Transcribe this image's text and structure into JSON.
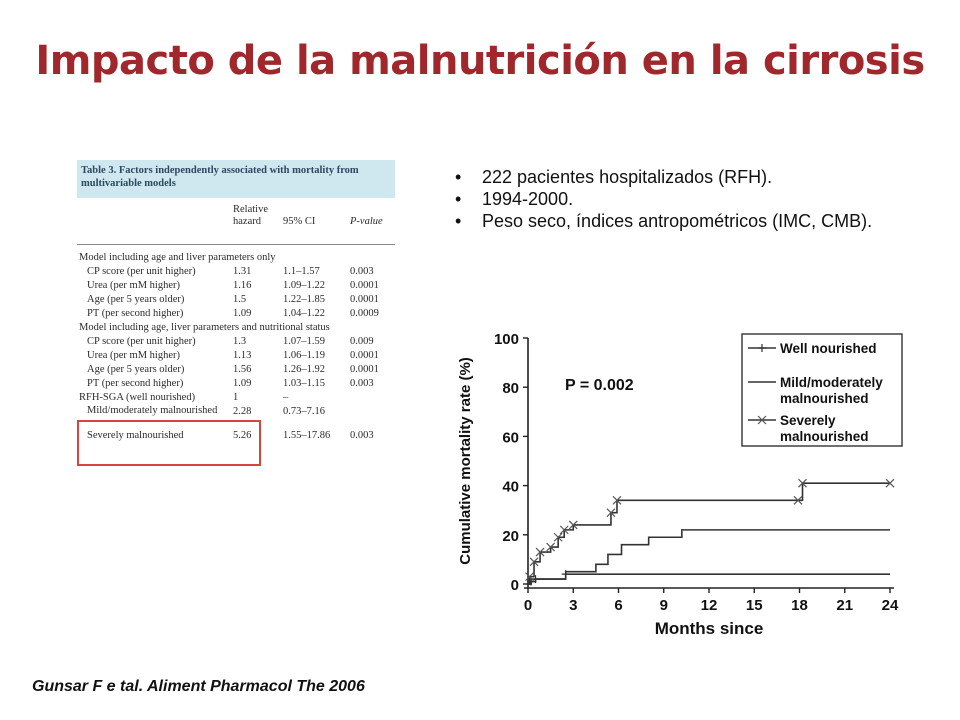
{
  "title": "Impacto de la malnutrición en la cirrosis",
  "table": {
    "caption_number": "Table 3.",
    "caption_text": "Factors independently associated with mortality from multivariable models",
    "col_hr_line1": "Relative",
    "col_hr_line2": "hazard",
    "col_ci": "95% CI",
    "col_p": "P-value",
    "rows": [
      {
        "label": "Model including age and liver parameters only",
        "hr": "",
        "ci": "",
        "p": "",
        "kind": "section"
      },
      {
        "label": "CP score (per unit higher)",
        "hr": "1.31",
        "ci": "1.1–1.57",
        "p": "0.003",
        "kind": "item"
      },
      {
        "label": "Urea (per mM higher)",
        "hr": "1.16",
        "ci": "1.09–1.22",
        "p": "0.0001",
        "kind": "item"
      },
      {
        "label": "Age (per 5 years older)",
        "hr": "1.5",
        "ci": "1.22–1.85",
        "p": "0.0001",
        "kind": "item"
      },
      {
        "label": "PT (per second higher)",
        "hr": "1.09",
        "ci": "1.04–1.22",
        "p": "0.0009",
        "kind": "item"
      },
      {
        "label": "Model including age, liver parameters and nutritional status",
        "hr": "",
        "ci": "",
        "p": "",
        "kind": "section"
      },
      {
        "label": "CP score (per unit higher)",
        "hr": "1.3",
        "ci": "1.07–1.59",
        "p": "0.009",
        "kind": "item"
      },
      {
        "label": "Urea (per mM higher)",
        "hr": "1.13",
        "ci": "1.06–1.19",
        "p": "0.0001",
        "kind": "item"
      },
      {
        "label": "Age (per 5 years older)",
        "hr": "1.56",
        "ci": "1.26–1.92",
        "p": "0.0001",
        "kind": "item"
      },
      {
        "label": "PT (per second higher)",
        "hr": "1.09",
        "ci": "1.03–1.15",
        "p": "0.003",
        "kind": "item"
      },
      {
        "label": "RFH-SGA (well nourished)",
        "hr": "1",
        "ci": "–",
        "p": "",
        "kind": "section"
      },
      {
        "label": "Mild/moderately malnourished",
        "hr": "2.28",
        "ci": "0.73–7.16",
        "p": "",
        "kind": "tall"
      },
      {
        "label": "Severely malnourished",
        "hr": "5.26",
        "ci": "1.55–17.86",
        "p": "0.003",
        "kind": "item"
      }
    ]
  },
  "bullets": [
    "222 pacientes hospitalizados (RFH).",
    "1994-2000.",
    "Peso seco, índices antropométricos (IMC, CMB)."
  ],
  "bullet_glyph": "•",
  "reference": "Gunsar F e tal. Aliment Pharmacol The 2006",
  "colors": {
    "title": "#a0282d",
    "caption_bg": "#cfe7ef",
    "highlight_box": "#d9443e"
  },
  "chart_data": {
    "type": "line",
    "title": "",
    "xlabel": "Months since",
    "ylabel": "Cumulative mortality rate (%)",
    "xlim": [
      0,
      24
    ],
    "ylim": [
      0,
      100
    ],
    "x_ticks": [
      0,
      3,
      6,
      9,
      12,
      15,
      18,
      21,
      24
    ],
    "y_ticks": [
      0,
      20,
      40,
      60,
      80,
      100
    ],
    "annotation": "P = 0.002",
    "legend_position": "top-right",
    "series": [
      {
        "name": "Well nourished",
        "marker": "plus",
        "x": [
          0,
          0.2,
          0.5,
          2.5,
          24
        ],
        "y": [
          0,
          1,
          2,
          4,
          4
        ]
      },
      {
        "name": "Mild/moderately malnourished",
        "marker": "none",
        "x": [
          0,
          0.2,
          2.5,
          4.5,
          5.3,
          6.2,
          8,
          10.2,
          24
        ],
        "y": [
          0,
          2,
          5,
          8,
          12,
          16,
          19,
          22,
          22
        ]
      },
      {
        "name": "Severely malnourished",
        "marker": "x",
        "x": [
          0,
          0.1,
          0.4,
          0.8,
          1.5,
          2,
          2.4,
          3,
          5.5,
          5.9,
          17.9,
          18.2,
          24
        ],
        "y": [
          0,
          3,
          9,
          13,
          15,
          19,
          22,
          24,
          29,
          34,
          34,
          41,
          41
        ]
      }
    ]
  }
}
